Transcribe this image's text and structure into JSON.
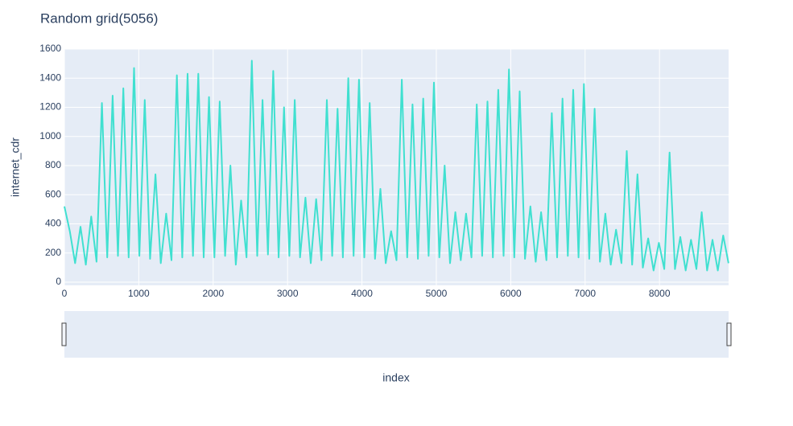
{
  "chart_data": {
    "type": "line",
    "title": "Random grid(5056)",
    "x_label": "index",
    "y_label": "internet_cdr",
    "color": "#40e0d0",
    "grid": true,
    "range_slider": true,
    "xlim": [
      0,
      8929
    ],
    "ylim": [
      -22,
      1600
    ],
    "xticks": [
      0,
      1000,
      2000,
      3000,
      4000,
      5000,
      6000,
      7000,
      8000
    ],
    "yticks": [
      0,
      200,
      400,
      600,
      800,
      1000,
      1200,
      1400,
      1600
    ],
    "x": [
      0,
      72,
      144,
      216,
      288,
      360,
      432,
      504,
      576,
      648,
      720,
      792,
      864,
      936,
      1008,
      1080,
      1152,
      1224,
      1296,
      1368,
      1440,
      1512,
      1584,
      1656,
      1728,
      1800,
      1872,
      1944,
      2016,
      2088,
      2160,
      2232,
      2304,
      2376,
      2448,
      2520,
      2592,
      2664,
      2736,
      2808,
      2880,
      2952,
      3024,
      3096,
      3168,
      3240,
      3312,
      3384,
      3456,
      3528,
      3600,
      3672,
      3744,
      3816,
      3888,
      3960,
      4032,
      4104,
      4176,
      4248,
      4320,
      4392,
      4464,
      4536,
      4608,
      4680,
      4752,
      4824,
      4896,
      4968,
      5040,
      5112,
      5184,
      5256,
      5328,
      5400,
      5472,
      5544,
      5616,
      5688,
      5760,
      5832,
      5904,
      5976,
      6048,
      6120,
      6192,
      6264,
      6336,
      6408,
      6480,
      6552,
      6624,
      6696,
      6768,
      6840,
      6912,
      6984,
      7056,
      7128,
      7200,
      7272,
      7344,
      7416,
      7488,
      7560,
      7632,
      7704,
      7776,
      7848,
      7920,
      7992,
      8064,
      8136,
      8208,
      8280,
      8352,
      8424,
      8496,
      8568,
      8640,
      8712,
      8784,
      8856,
      8928
    ],
    "values": [
      520,
      350,
      130,
      380,
      120,
      450,
      140,
      1230,
      170,
      1280,
      180,
      1330,
      170,
      1470,
      180,
      1250,
      160,
      740,
      130,
      470,
      150,
      1420,
      170,
      1430,
      180,
      1430,
      170,
      1270,
      170,
      1240,
      180,
      800,
      120,
      560,
      170,
      1520,
      180,
      1250,
      190,
      1450,
      170,
      1200,
      180,
      1250,
      170,
      580,
      130,
      570,
      150,
      1250,
      180,
      1190,
      170,
      1400,
      180,
      1390,
      170,
      1230,
      160,
      640,
      130,
      350,
      150,
      1390,
      170,
      1220,
      160,
      1260,
      180,
      1370,
      170,
      800,
      130,
      480,
      150,
      470,
      170,
      1220,
      180,
      1240,
      170,
      1320,
      180,
      1460,
      170,
      1310,
      160,
      520,
      140,
      480,
      150,
      1160,
      170,
      1260,
      180,
      1320,
      170,
      1360,
      160,
      1190,
      140,
      470,
      120,
      360,
      130,
      900,
      120,
      740,
      100,
      300,
      80,
      270,
      90,
      890,
      90,
      310,
      80,
      290,
      90,
      480,
      80,
      290,
      80,
      320,
      130
    ]
  }
}
